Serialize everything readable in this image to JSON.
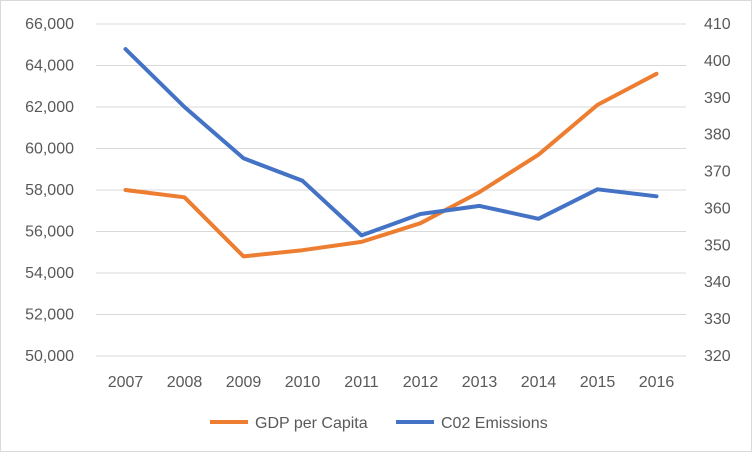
{
  "chart_data": {
    "type": "line",
    "title": "",
    "categories": [
      "2007",
      "2008",
      "2009",
      "2010",
      "2011",
      "2012",
      "2013",
      "2014",
      "2015",
      "2016"
    ],
    "series": [
      {
        "name": "GDP per Capita",
        "axis": "left",
        "color": "#ED7D31",
        "values": [
          58000,
          57650,
          54800,
          55100,
          55500,
          56400,
          57900,
          59700,
          62100,
          63600
        ]
      },
      {
        "name": "C02 Emissions",
        "axis": "right",
        "color": "#4472C4",
        "values": [
          403.2,
          387.5,
          373.6,
          367.5,
          352.7,
          358.5,
          360.7,
          357.2,
          365.2,
          363.3
        ]
      }
    ],
    "y_left": {
      "ylim": [
        50000,
        66000
      ],
      "ticks": [
        50000,
        52000,
        54000,
        56000,
        58000,
        60000,
        62000,
        64000,
        66000
      ],
      "tick_labels": [
        "50,000",
        "52,000",
        "54,000",
        "56,000",
        "58,000",
        "60,000",
        "62,000",
        "64,000",
        "66,000"
      ]
    },
    "y_right": {
      "ylim": [
        320,
        410
      ],
      "ticks": [
        320,
        330,
        340,
        350,
        360,
        370,
        380,
        390,
        400,
        410
      ],
      "tick_labels": [
        "320",
        "330",
        "340",
        "350",
        "360",
        "370",
        "380",
        "390",
        "400",
        "410"
      ]
    },
    "grid": true,
    "legend": "bottom"
  }
}
